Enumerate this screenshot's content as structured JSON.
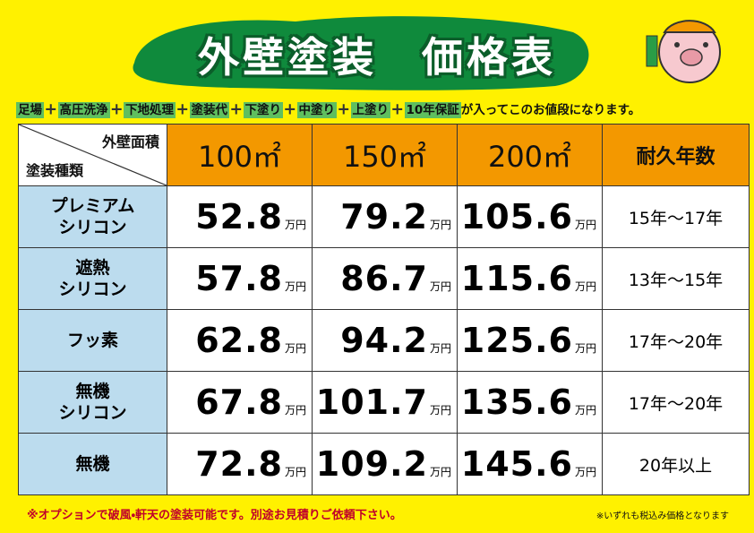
{
  "title": "外壁塗装　価格表",
  "includes": {
    "items": [
      "足場",
      "高圧洗浄",
      "下地処理",
      "塗装代",
      "下塗り",
      "中塗り",
      "上塗り",
      "10年保証"
    ],
    "separator": "＋",
    "suffix": "が入ってこのお値段になります。"
  },
  "table": {
    "corner": {
      "top": "外壁面積",
      "bottom": "塗装種類"
    },
    "columns": [
      "100㎡",
      "150㎡",
      "200㎡",
      "耐久年数"
    ],
    "price_unit": "万円",
    "rows": [
      {
        "name": [
          "プレミアム",
          "シリコン"
        ],
        "prices": [
          "52.8",
          "79.2",
          "105.6"
        ],
        "durability": "15年～17年"
      },
      {
        "name": [
          "遮熱",
          "シリコン"
        ],
        "prices": [
          "57.8",
          "86.7",
          "115.6"
        ],
        "durability": "13年～15年"
      },
      {
        "name": [
          "フッ素"
        ],
        "prices": [
          "62.8",
          "94.2",
          "125.6"
        ],
        "durability": "17年～20年"
      },
      {
        "name": [
          "無機",
          "シリコン"
        ],
        "prices": [
          "67.8",
          "101.7",
          "135.6"
        ],
        "durability": "17年～20年"
      },
      {
        "name": [
          "無機"
        ],
        "prices": [
          "72.8",
          "109.2",
          "145.6"
        ],
        "durability": "20年以上"
      }
    ]
  },
  "footer": {
    "note": "※オプションで破風・軒天の塗装可能です。別途お見積りご依頼下さい。",
    "tax_note": "※いずれも税込み価格となります"
  }
}
